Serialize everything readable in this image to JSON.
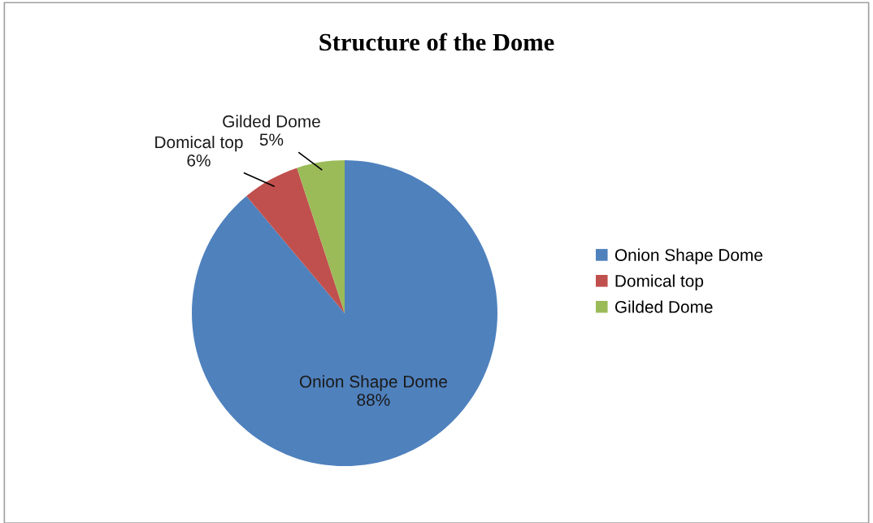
{
  "chart_data": {
    "type": "pie",
    "title": "Structure of the Dome",
    "categories": [
      "Onion Shape Dome",
      "Domical top",
      "Gilded Dome"
    ],
    "values": [
      88,
      6,
      5
    ],
    "colors": [
      "#4f81bd",
      "#c0504d",
      "#9bbb59"
    ],
    "value_labels": [
      "88%",
      "6%",
      "5%"
    ],
    "legend": "right"
  }
}
